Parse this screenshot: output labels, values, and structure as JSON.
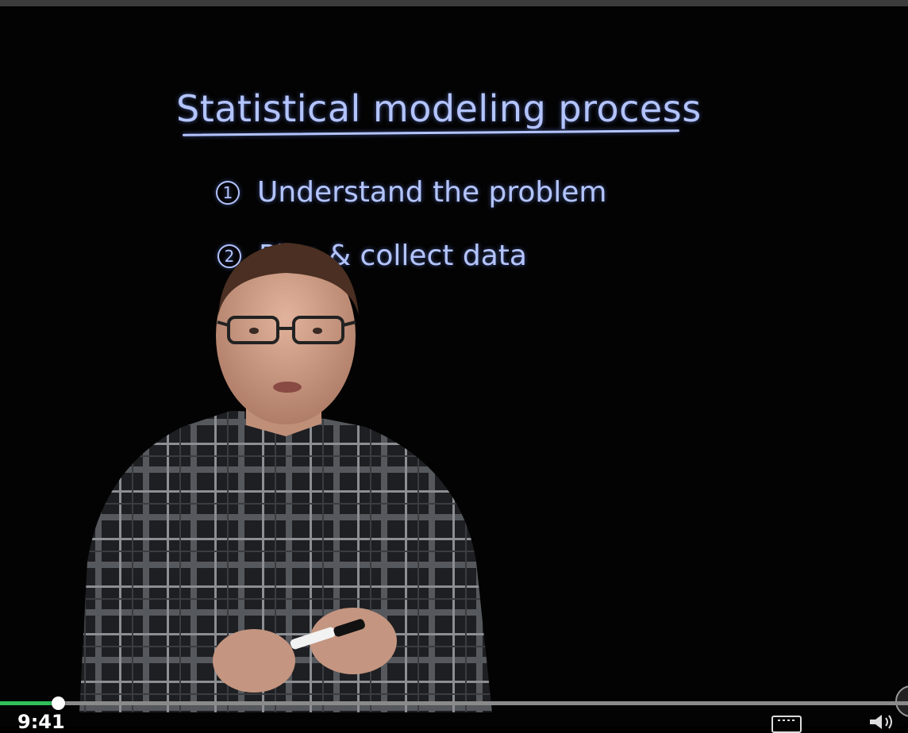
{
  "board": {
    "title": "Statistical modeling process",
    "steps": [
      {
        "number": "1",
        "label": "Understand the problem"
      },
      {
        "number": "2",
        "label": "Plan & collect data"
      }
    ],
    "ink_color": "#b3c4ff"
  },
  "player": {
    "current_time": "9:41",
    "progress_fraction": 0.064,
    "progress_color": "#2fbf5a",
    "controls": {
      "captions_icon": "closed-captions-icon",
      "volume_icon": "volume-icon"
    }
  }
}
